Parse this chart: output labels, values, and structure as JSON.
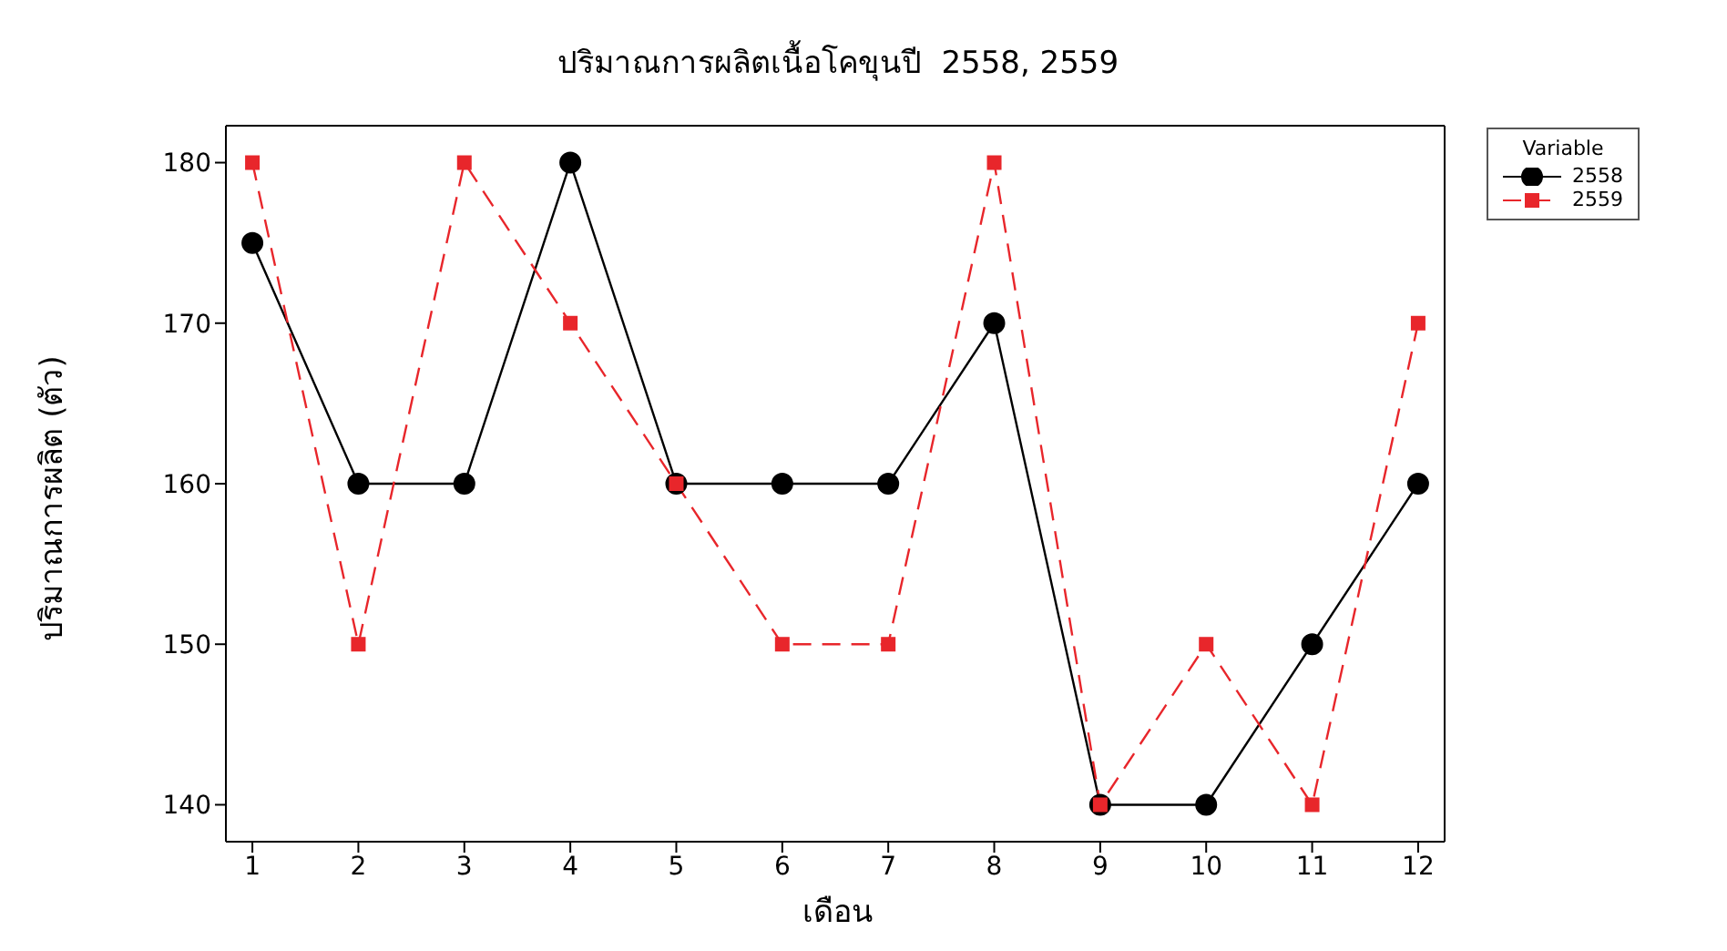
{
  "chart_data": {
    "type": "line",
    "title": "ปริมาณการผลิตเนื้อโคขุนปี  2558, 2559",
    "xlabel": "เดือน",
    "ylabel": "ปริมาณการผลิต (ตัว)",
    "legend_title": "Variable",
    "legend": "top right",
    "grid": false,
    "x": [
      1,
      2,
      3,
      4,
      5,
      6,
      7,
      8,
      9,
      10,
      11,
      12
    ],
    "xlim": [
      0.75,
      12.25
    ],
    "xticks": [
      1,
      2,
      3,
      4,
      5,
      6,
      7,
      8,
      9,
      10,
      11,
      12
    ],
    "ylim": [
      137.7,
      182.3
    ],
    "yticks": [
      140,
      150,
      160,
      170,
      180
    ],
    "series": [
      {
        "name": "2558",
        "color": "#000000",
        "marker": "circle",
        "line_style": "solid",
        "values": [
          175,
          160,
          160,
          180,
          160,
          160,
          160,
          170,
          140,
          140,
          150,
          160
        ]
      },
      {
        "name": "2559",
        "color": "#e8262b",
        "marker": "square",
        "line_style": "dashed",
        "values": [
          180,
          150,
          180,
          170,
          160,
          150,
          150,
          180,
          140,
          150,
          140,
          170
        ]
      }
    ]
  }
}
